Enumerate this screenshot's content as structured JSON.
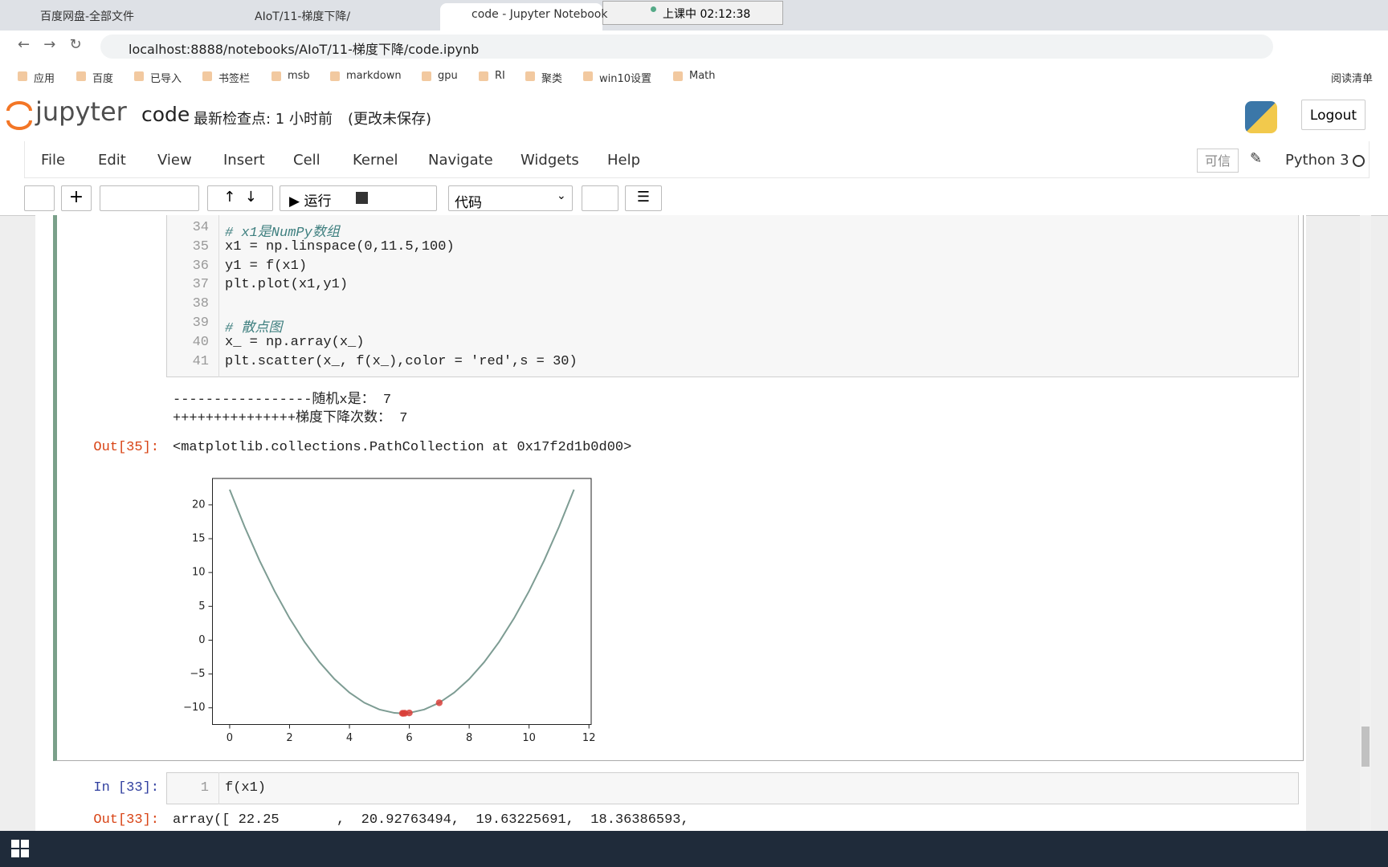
{
  "browser": {
    "tabs": [
      "百度网盘-全部文件",
      "AIoT/11-梯度下降/",
      "code - Jupyter Notebook"
    ],
    "recording": "上课中 02:12:38",
    "url": "localhost:8888/notebooks/AIoT/11-梯度下降/code.ipynb",
    "bookmarks": [
      "应用",
      "百度",
      "已导入",
      "书签栏",
      "msb",
      "markdown",
      "gpu",
      "RI",
      "聚类",
      "win10设置",
      "Math"
    ],
    "reading_list": "阅读清单"
  },
  "jupyter": {
    "logo": "jupyter",
    "notebook_name": "code",
    "checkpoint": "最新检查点: 1 小时前",
    "unsaved": "(更改未保存)",
    "logout": "Logout",
    "menu": [
      "File",
      "Edit",
      "View",
      "Insert",
      "Cell",
      "Kernel",
      "Navigate",
      "Widgets",
      "Help"
    ],
    "trusted": "可信",
    "kernel": "Python 3",
    "run": "运行",
    "cell_type": "代码"
  },
  "cells": [
    {
      "code_lines": [
        {
          "number": 34,
          "text": "# x1是NumPy数组"
        },
        {
          "number": 35,
          "text": "x1 = np.linspace(0,11.5,100)"
        },
        {
          "number": 36,
          "text": "y1 = f(x1)"
        },
        {
          "number": 37,
          "text": "plt.plot(x1,y1)"
        },
        {
          "number": 38
        },
        {
          "number": 39,
          "text": "# 散点图"
        },
        {
          "number": 40,
          "text": "x_ = np.array(x_)"
        },
        {
          "number": 41,
          "text": "plt.scatter(x_, f(x_),color = 'red',s = 30)"
        }
      ],
      "stdout": [
        "-----------------随机x是： 7",
        "+++++++++++++++梯度下降次数： 7"
      ],
      "out_prompt": "Out[35]:",
      "out_text": "<matplotlib.collections.PathCollection at 0x17f2d1b0d00>",
      "plot": {
        "xlim": [
          -0.575,
          12.075
        ],
        "ylim": [
          -12.466,
          23.903
        ],
        "xticks": [
          0,
          2,
          4,
          6,
          8,
          10,
          12
        ],
        "yticks": [
          {
            "value": -10,
            "label": "−10"
          },
          {
            "value": -5,
            "label": "−5"
          },
          0,
          5,
          10,
          15,
          20
        ],
        "line": {
          "color": "#7d9c93",
          "x": [
            0,
            0.5,
            1,
            1.5,
            2,
            2.5,
            3,
            3.5,
            4,
            4.5,
            5,
            5.5,
            5.75,
            6,
            6.5,
            7,
            7.5,
            8,
            8.5,
            9,
            9.5,
            10,
            10.5,
            11,
            11.5
          ],
          "y": [
            22.25,
            16.75,
            11.75,
            7.25,
            3.25,
            -0.25,
            -3.25,
            -5.75,
            -7.75,
            -9.25,
            -10.25,
            -10.75,
            -10.8125,
            -10.75,
            -10.25,
            -9.25,
            -7.75,
            -5.75,
            -3.25,
            -0.25,
            3.25,
            7.25,
            11.75,
            16.75,
            22.25
          ]
        },
        "scatter": {
          "color": "#d9403a",
          "x": [
            7,
            6,
            5.85,
            5.8,
            5.77
          ],
          "y": [
            -9.25,
            -10.75,
            -10.8025,
            -10.81,
            -10.8121
          ]
        }
      }
    },
    {
      "in_prompt": "In [33]:",
      "code_lines": [
        {
          "number": 1,
          "text": "f(x1)"
        }
      ],
      "out_prompt": "Out[33]:",
      "out_text": "array([ 22.25       ,  20.92763494,  19.63225691,  18.36386593,"
    }
  ]
}
